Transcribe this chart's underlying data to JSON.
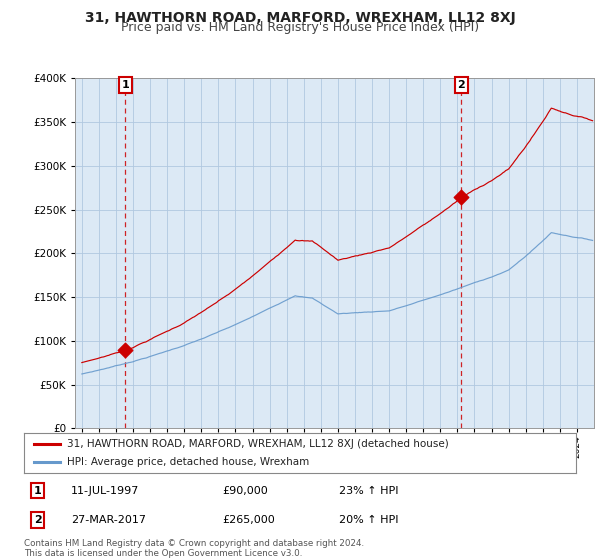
{
  "title": "31, HAWTHORN ROAD, MARFORD, WREXHAM, LL12 8XJ",
  "subtitle": "Price paid vs. HM Land Registry's House Price Index (HPI)",
  "red_label": "31, HAWTHORN ROAD, MARFORD, WREXHAM, LL12 8XJ (detached house)",
  "blue_label": "HPI: Average price, detached house, Wrexham",
  "annotation1_date": "11-JUL-1997",
  "annotation1_price": "£90,000",
  "annotation1_hpi": "23% ↑ HPI",
  "annotation2_date": "27-MAR-2017",
  "annotation2_price": "£265,000",
  "annotation2_hpi": "20% ↑ HPI",
  "footer": "Contains HM Land Registry data © Crown copyright and database right 2024.\nThis data is licensed under the Open Government Licence v3.0.",
  "sale1_year": 1997.55,
  "sale1_price": 90000,
  "sale2_year": 2017.22,
  "sale2_price": 265000,
  "ylim_min": 0,
  "ylim_max": 400000,
  "xlim_min": 1994.6,
  "xlim_max": 2025.0,
  "plot_bg_color": "#dce9f5",
  "fig_bg_color": "#ffffff",
  "grid_color": "#b0c8e0",
  "red_color": "#cc0000",
  "blue_color": "#6699cc",
  "title_fontsize": 10,
  "subtitle_fontsize": 9
}
